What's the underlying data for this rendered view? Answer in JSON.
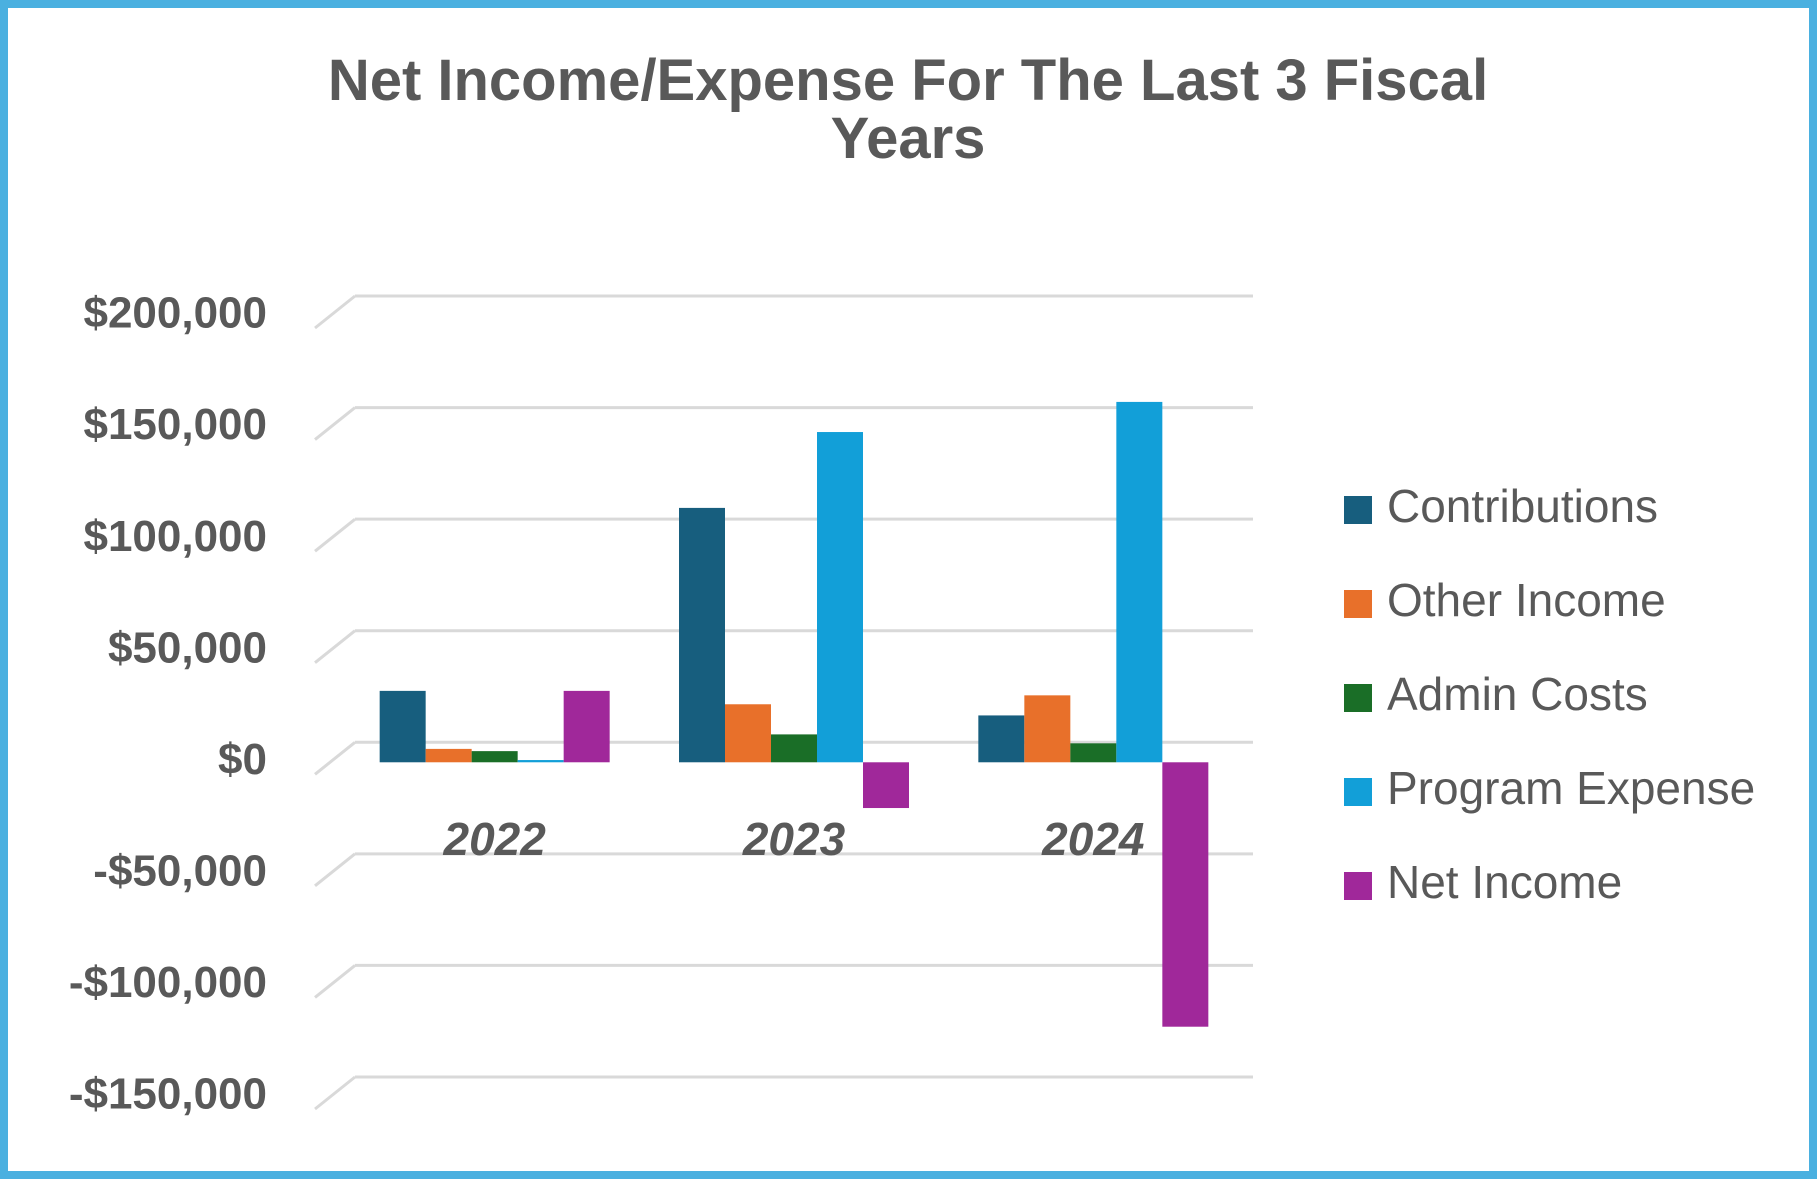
{
  "chart_data": {
    "type": "bar",
    "title": "Net Income/Expense For The Last 3 Fiscal Years",
    "categories": [
      "2022",
      "2023",
      "2024"
    ],
    "series": [
      {
        "name": "Contributions",
        "color": "#175e7e",
        "values": [
          32000,
          114000,
          21000
        ]
      },
      {
        "name": "Other Income",
        "color": "#e8702a",
        "values": [
          6000,
          26000,
          30000
        ]
      },
      {
        "name": "Admin Costs",
        "color": "#1a6e27",
        "values": [
          5000,
          12500,
          8500
        ]
      },
      {
        "name": "Program Expense",
        "color": "#129fd8",
        "values": [
          1000,
          148000,
          161500
        ]
      },
      {
        "name": "Net Income",
        "color": "#a0289a",
        "values": [
          32000,
          -20500,
          -118500
        ]
      }
    ],
    "ylim": [
      -150000,
      200000
    ],
    "yticks": [
      {
        "value": -150000,
        "label": "-$150,000"
      },
      {
        "value": -100000,
        "label": "-$100,000"
      },
      {
        "value": -50000,
        "label": "-$50,000"
      },
      {
        "value": 0,
        "label": "$0"
      },
      {
        "value": 50000,
        "label": "$50,000"
      },
      {
        "value": 100000,
        "label": "$100,000"
      },
      {
        "value": 150000,
        "label": "$150,000"
      },
      {
        "value": 200000,
        "label": "$200,000"
      }
    ],
    "grid": true,
    "legend": "right"
  }
}
